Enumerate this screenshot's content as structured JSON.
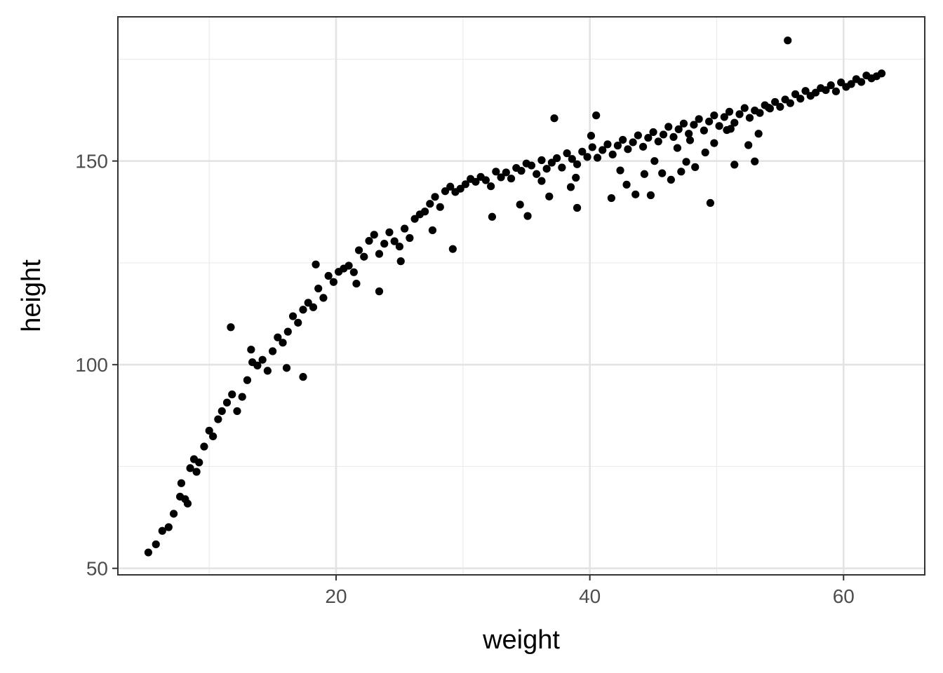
{
  "chart_data": {
    "type": "scatter",
    "title": "",
    "xlabel": "weight",
    "ylabel": "height",
    "xlim": [
      2.8,
      66.4
    ],
    "ylim": [
      48.4,
      185.4
    ],
    "x_ticks": [
      20,
      40,
      60
    ],
    "x_tick_labels": [
      "20",
      "40",
      "60"
    ],
    "y_ticks": [
      50,
      100,
      150
    ],
    "y_tick_labels": [
      "50",
      "100",
      "150"
    ],
    "x_minor_ticks": [
      10,
      30,
      50
    ],
    "y_minor_ticks": [
      75,
      125,
      175
    ],
    "grid": true,
    "legend": "none",
    "point_color": "#000000",
    "x": [
      5.2,
      5.8,
      6.3,
      6.8,
      7.2,
      7.7,
      8.1,
      8.5,
      8.8,
      9.2,
      9.6,
      10.0,
      10.3,
      10.7,
      11.0,
      11.4,
      11.8,
      12.2,
      12.6,
      13.0,
      13.4,
      13.8,
      14.2,
      14.6,
      15.0,
      15.4,
      15.8,
      16.2,
      16.6,
      17.0,
      17.4,
      17.8,
      18.2,
      18.6,
      19.0,
      19.4,
      19.8,
      20.2,
      20.6,
      21.0,
      21.4,
      21.8,
      22.2,
      22.6,
      23.0,
      23.4,
      23.8,
      24.2,
      24.6,
      25.0,
      25.4,
      25.8,
      26.2,
      26.6,
      27.0,
      27.4,
      27.8,
      28.2,
      28.6,
      29.0,
      29.4,
      29.8,
      30.2,
      30.6,
      31.0,
      31.4,
      31.8,
      32.2,
      32.6,
      33.0,
      33.4,
      33.8,
      34.2,
      34.6,
      35.0,
      35.4,
      35.8,
      36.2,
      36.6,
      37.0,
      37.4,
      37.8,
      38.2,
      38.6,
      39.0,
      39.4,
      39.8,
      40.2,
      40.6,
      41.0,
      41.4,
      41.8,
      42.2,
      42.6,
      43.0,
      43.4,
      43.8,
      44.2,
      44.6,
      45.0,
      45.4,
      45.8,
      46.2,
      46.6,
      47.0,
      47.4,
      47.8,
      48.2,
      48.6,
      49.0,
      49.4,
      49.8,
      50.2,
      50.6,
      51.0,
      51.4,
      51.8,
      52.2,
      52.6,
      53.0,
      53.4,
      53.8,
      54.2,
      54.6,
      55.0,
      55.4,
      55.8,
      56.2,
      56.6,
      57.0,
      57.4,
      57.8,
      58.2,
      58.6,
      59.0,
      59.4,
      59.8,
      60.2,
      60.6,
      61.0,
      61.4,
      61.8,
      62.2,
      62.6,
      63.0,
      7.8,
      8.3,
      9.0,
      11.7,
      13.3,
      16.1,
      17.4,
      18.4,
      21.6,
      23.4,
      25.1,
      27.6,
      29.2,
      32.3,
      35.1,
      37.2,
      39.0,
      40.5,
      44.8,
      47.2,
      49.5,
      51.4,
      53.0,
      55.6,
      34.5,
      36.8,
      38.5,
      41.7,
      42.9,
      43.6,
      44.3,
      45.7,
      46.4,
      47.6,
      48.3,
      49.1,
      50.8,
      52.5,
      54.1,
      36.2,
      38.9,
      40.1,
      42.4,
      45.1,
      46.9,
      47.9,
      49.8,
      51.1,
      53.3
    ],
    "y": [
      53.9,
      55.9,
      59.2,
      60.1,
      63.4,
      67.6,
      67.0,
      74.6,
      76.8,
      76.0,
      79.9,
      83.8,
      82.4,
      86.6,
      88.6,
      90.7,
      92.7,
      88.6,
      92.1,
      96.2,
      100.6,
      99.8,
      101.2,
      98.5,
      103.3,
      106.7,
      105.4,
      108.1,
      111.9,
      110.3,
      113.5,
      115.2,
      114.1,
      118.7,
      116.4,
      121.8,
      120.3,
      122.8,
      123.6,
      124.3,
      122.7,
      128.1,
      126.5,
      130.4,
      131.9,
      127.2,
      129.7,
      132.5,
      130.3,
      129.0,
      133.4,
      131.1,
      135.8,
      136.9,
      137.6,
      139.5,
      141.2,
      138.7,
      142.6,
      143.7,
      142.4,
      143.2,
      144.3,
      145.6,
      144.9,
      146.1,
      145.3,
      143.8,
      147.4,
      146.0,
      147.2,
      145.7,
      148.3,
      147.6,
      149.4,
      148.9,
      146.8,
      150.2,
      148.1,
      149.6,
      150.7,
      148.4,
      151.9,
      150.5,
      149.2,
      152.3,
      151.0,
      153.4,
      150.8,
      152.7,
      154.1,
      151.6,
      153.8,
      155.2,
      152.9,
      154.6,
      156.3,
      153.5,
      155.7,
      157.1,
      154.8,
      156.5,
      158.4,
      155.9,
      157.8,
      159.2,
      156.7,
      158.9,
      160.3,
      157.5,
      159.7,
      161.2,
      158.6,
      160.8,
      162.1,
      159.4,
      161.5,
      163.0,
      160.6,
      162.4,
      161.8,
      163.7,
      162.9,
      164.5,
      163.3,
      165.1,
      164.2,
      166.4,
      165.3,
      167.2,
      166.0,
      166.8,
      167.9,
      167.4,
      168.6,
      167.1,
      169.3,
      168.2,
      168.9,
      170.1,
      169.4,
      171.0,
      170.3,
      170.8,
      171.5,
      70.9,
      65.9,
      73.7,
      109.2,
      103.7,
      99.2,
      97.0,
      124.6,
      119.9,
      118.0,
      125.4,
      133.0,
      128.4,
      136.3,
      136.5,
      160.5,
      138.5,
      161.2,
      141.6,
      147.4,
      139.7,
      149.1,
      149.9,
      179.6,
      139.3,
      141.3,
      143.6,
      140.9,
      144.2,
      141.8,
      146.8,
      147.0,
      145.4,
      149.8,
      148.5,
      152.1,
      157.6,
      153.9,
      163.1,
      145.1,
      145.9,
      156.2,
      147.7,
      150.0,
      153.2,
      155.1,
      154.4,
      157.9,
      156.7
    ]
  }
}
